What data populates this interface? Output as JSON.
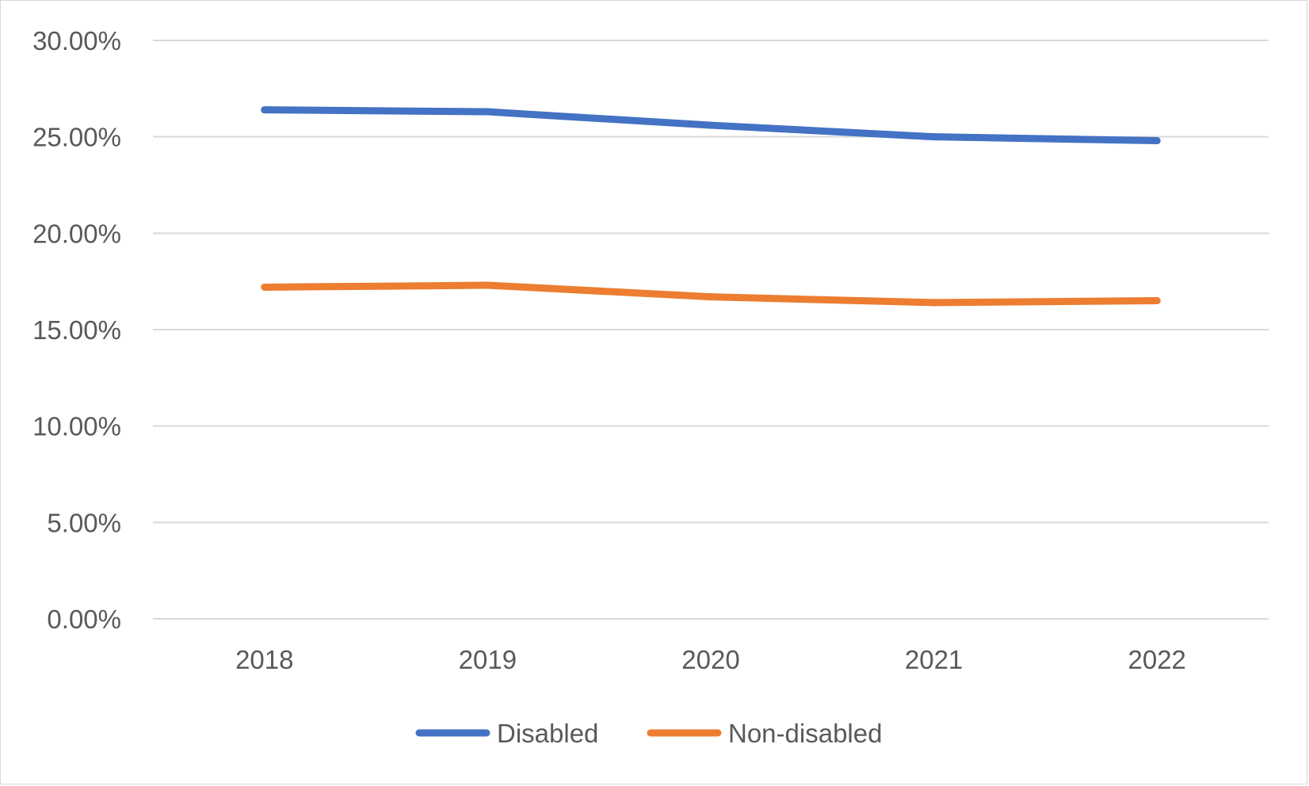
{
  "chart_data": {
    "type": "line",
    "title": "",
    "xlabel": "",
    "ylabel": "",
    "categories": [
      "2018",
      "2019",
      "2020",
      "2021",
      "2022"
    ],
    "ylim": [
      0,
      30
    ],
    "yticks": [
      0,
      5,
      10,
      15,
      20,
      25,
      30
    ],
    "ytick_labels": [
      "0.00%",
      "5.00%",
      "10.00%",
      "15.00%",
      "20.00%",
      "25.00%",
      "30.00%"
    ],
    "grid": true,
    "legend_position": "bottom",
    "series": [
      {
        "name": "Disabled",
        "values": [
          26.4,
          26.3,
          25.6,
          25.0,
          24.8
        ],
        "color": "#4472c4"
      },
      {
        "name": "Non-disabled",
        "values": [
          17.2,
          17.3,
          16.7,
          16.4,
          16.5
        ],
        "color": "#ed7d31"
      }
    ]
  }
}
